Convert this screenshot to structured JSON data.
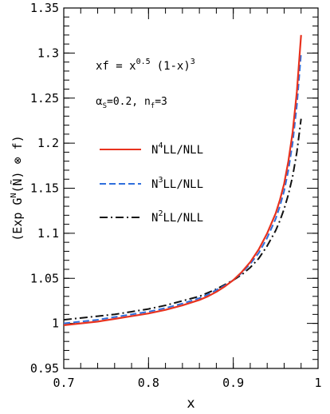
{
  "chart_data": {
    "type": "line",
    "title": "",
    "xlabel": "x",
    "ylabel": "(Exp G^N(Ñ) ⊗ f)",
    "xlim": [
      0.7,
      1.0
    ],
    "ylim": [
      0.95,
      1.35
    ],
    "xticks": [
      0.7,
      0.8,
      0.9,
      1.0
    ],
    "xtick_labels": [
      "0.7",
      "0.8",
      "0.9",
      "1"
    ],
    "yticks": [
      0.95,
      1.0,
      1.05,
      1.1,
      1.15,
      1.2,
      1.25,
      1.3,
      1.35
    ],
    "ytick_labels": [
      "0.95",
      "1",
      "1.05",
      "1.1",
      "1.15",
      "1.2",
      "1.25",
      "1.3",
      "1.35"
    ],
    "grid": false,
    "legend_position": "left-middle",
    "annotations": {
      "formula": {
        "lhs": "xf = x",
        "exp1": "0.5",
        "mid": "(1-x)",
        "exp2": "3"
      },
      "params": {
        "alpha": "α",
        "alpha_sub": "S",
        "alpha_val": "=0.2, n",
        "nf_sub": "f",
        "nf_val": "=3"
      }
    },
    "series": [
      {
        "name": "N4LL/NLL",
        "legend": {
          "pre": "N",
          "sup": "4",
          "post": "LL/NLL"
        },
        "color": "#e8321e",
        "dash": "solid",
        "x": [
          0.7,
          0.72,
          0.74,
          0.76,
          0.78,
          0.8,
          0.82,
          0.84,
          0.86,
          0.87,
          0.88,
          0.89,
          0.9,
          0.91,
          0.92,
          0.93,
          0.94,
          0.95,
          0.955,
          0.96,
          0.965,
          0.97,
          0.975,
          0.98
        ],
        "y": [
          0.998,
          1.0,
          1.002,
          1.005,
          1.008,
          1.011,
          1.015,
          1.02,
          1.026,
          1.03,
          1.035,
          1.041,
          1.048,
          1.057,
          1.068,
          1.082,
          1.1,
          1.122,
          1.137,
          1.155,
          1.18,
          1.212,
          1.257,
          1.32
        ]
      },
      {
        "name": "N3LL/NLL",
        "legend": {
          "pre": "N",
          "sup": "3",
          "post": "LL/NLL"
        },
        "color": "#2f6fdc",
        "dash": "dashed",
        "x": [
          0.7,
          0.72,
          0.74,
          0.76,
          0.78,
          0.8,
          0.82,
          0.84,
          0.86,
          0.87,
          0.88,
          0.89,
          0.9,
          0.91,
          0.92,
          0.93,
          0.94,
          0.95,
          0.955,
          0.96,
          0.965,
          0.97,
          0.975,
          0.98
        ],
        "y": [
          1.0,
          1.002,
          1.004,
          1.007,
          1.01,
          1.013,
          1.017,
          1.022,
          1.028,
          1.032,
          1.037,
          1.042,
          1.048,
          1.056,
          1.066,
          1.078,
          1.095,
          1.116,
          1.13,
          1.147,
          1.17,
          1.2,
          1.242,
          1.3
        ]
      },
      {
        "name": "N2LL/NLL",
        "legend": {
          "pre": "N",
          "sup": "2",
          "post": "LL/NLL"
        },
        "color": "#111111",
        "dash": "dashdot",
        "x": [
          0.7,
          0.72,
          0.74,
          0.76,
          0.78,
          0.8,
          0.82,
          0.84,
          0.86,
          0.87,
          0.88,
          0.89,
          0.9,
          0.91,
          0.92,
          0.93,
          0.94,
          0.95,
          0.955,
          0.96,
          0.965,
          0.97,
          0.975,
          0.98
        ],
        "y": [
          1.004,
          1.006,
          1.008,
          1.01,
          1.013,
          1.016,
          1.02,
          1.025,
          1.03,
          1.034,
          1.038,
          1.043,
          1.048,
          1.054,
          1.062,
          1.072,
          1.086,
          1.103,
          1.114,
          1.127,
          1.143,
          1.163,
          1.19,
          1.227
        ]
      }
    ]
  }
}
